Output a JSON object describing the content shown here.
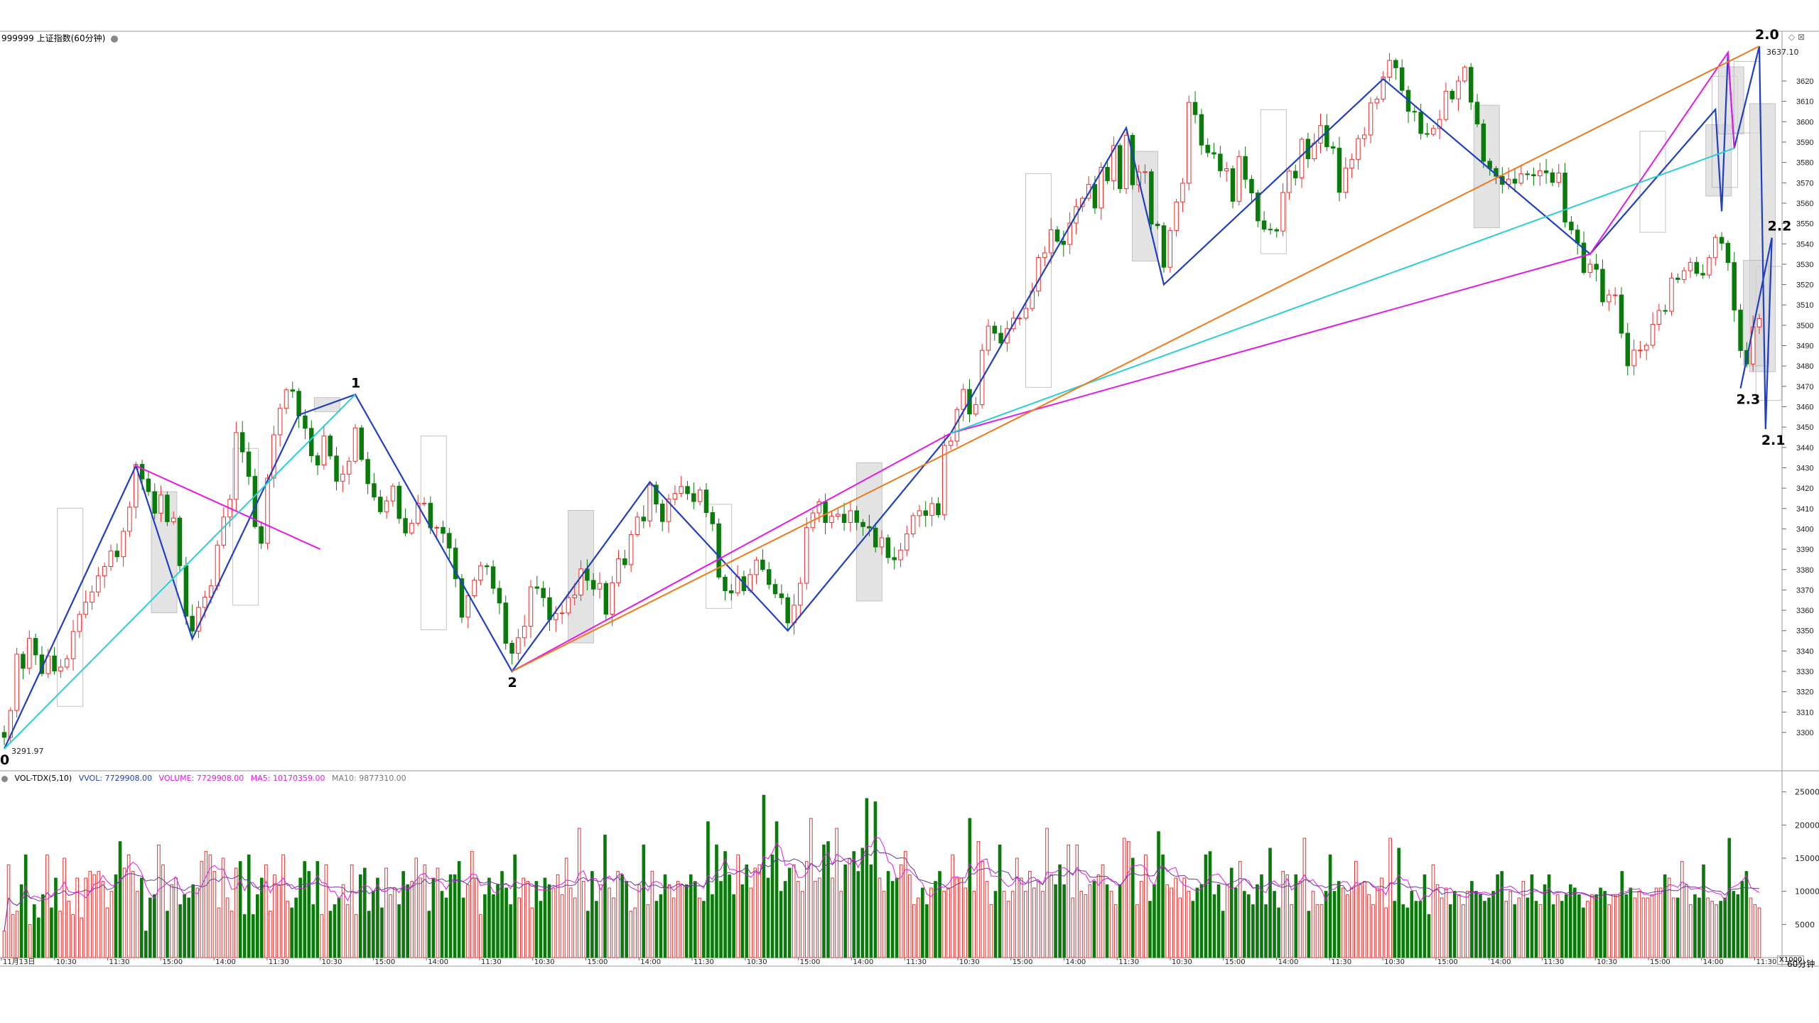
{
  "header": {
    "title": "999999 上证指数(60分钟)"
  },
  "volume_header": {
    "indicator": "VOL-TDX(5,10)",
    "vvol": "VVOL: 7729908.00",
    "volume": "VOLUME: 7729908.00",
    "ma5": "MA5: 10170359.00",
    "ma10": "MA10: 9877310.00"
  },
  "period_label": "60分钟",
  "scale_label": "X1000",
  "colors": {
    "up": "#e8302f",
    "down": "#0a7a0a",
    "zigzag": "#1f3fc4",
    "magenta": "#e21ae6",
    "cyan": "#2ad0d0",
    "orange": "#f07a1a",
    "ma5": "#e21ae6",
    "ma10": "#6a3a9a",
    "box_fill": "#d8d8d8"
  },
  "chart_data": [
    {
      "type": "candlestick",
      "title": "999999 上证指数(60分钟)",
      "ylim": [
        3285,
        3645
      ],
      "y_ticks": [
        3300,
        3310,
        3320,
        3330,
        3340,
        3350,
        3360,
        3370,
        3380,
        3390,
        3400,
        3410,
        3420,
        3430,
        3440,
        3450,
        3460,
        3470,
        3480,
        3490,
        3500,
        3510,
        3520,
        3530,
        3540,
        3550,
        3560,
        3570,
        3580,
        3590,
        3600,
        3610,
        3620
      ],
      "x_labels": [
        "11月13日",
        "10:30",
        "11:30",
        "15:00",
        "14:00",
        "11:30",
        "10:30",
        "15:00",
        "14:00",
        "11:30",
        "10:30",
        "15:00",
        "14:00",
        "11:30",
        "10:30",
        "15:00",
        "14:00",
        "11:30",
        "10:30",
        "15:00",
        "14:00",
        "11:30",
        "10:30",
        "15:00",
        "14:00",
        "11:30",
        "10:30",
        "15:00",
        "14:00",
        "11:30",
        "10:30",
        "15:00",
        "14:00",
        "11:30"
      ],
      "price_marks": [
        {
          "label": "3291.97",
          "value": 3291.97
        },
        {
          "label": "3637.10",
          "value": 3637.1
        }
      ],
      "wave_labels": [
        {
          "label": "0",
          "value": 3291.97
        },
        {
          "label": "1",
          "value": 3466
        },
        {
          "label": "2",
          "value": 3330
        },
        {
          "label": "2.0",
          "value": 3637.1
        },
        {
          "label": "2.1",
          "value": 3449
        },
        {
          "label": "2.2",
          "value": 3543
        },
        {
          "label": "2.3",
          "value": 3469
        }
      ],
      "zigzag": [
        3291.97,
        3431,
        3346,
        3456,
        3466,
        3330,
        3423,
        3350,
        3447,
        3597,
        3520,
        3621,
        3535,
        3606,
        3556,
        3634,
        3587,
        3637.1,
        3449,
        3543,
        3469
      ],
      "close": [
        3297.6,
        3310.8,
        3338.4,
        3331.5,
        3346.2,
        3338.1,
        3328.9,
        3337.6,
        3330.2,
        3332.1,
        3336.2,
        3349.6,
        3358.0,
        3364.0,
        3369.0,
        3376.9,
        3381.5,
        3389.1,
        3386.3,
        3398.8,
        3410.7,
        3431.7,
        3424.5,
        3418.3,
        3407.7,
        3416.6,
        3403.5,
        3405.3,
        3381.9,
        3357.1,
        3349.8,
        3361.4,
        3366.5,
        3372.0,
        3392.0,
        3405.8,
        3414.5,
        3447.3,
        3437.8,
        3425.8,
        3401.1,
        3392.9,
        3424.9,
        3446.2,
        3459.2,
        3468.3,
        3467.6,
        3455.5,
        3449.4,
        3435.9,
        3431.4,
        3445.6,
        3435.8,
        3423.4,
        3426.9,
        3433.2,
        3449.6,
        3434.1,
        3422.2,
        3415.6,
        3408.4,
        3413.7,
        3421.0,
        3405.1,
        3398.0,
        3402.8,
        3412.6,
        3412.6,
        3400.5,
        3400.7,
        3397.8,
        3390.6,
        3375.5,
        3356.6,
        3367.2,
        3374.8,
        3381.9,
        3381.4,
        3370.8,
        3363.6,
        3343.8,
        3338.9,
        3346.5,
        3352.2,
        3371.5,
        3370.8,
        3366.2,
        3355.4,
        3358.4,
        3358.7,
        3366.2,
        3367.5,
        3380.3,
        3374.7,
        3370.4,
        3373.2,
        3358.1,
        3373.5,
        3385.3,
        3382.4,
        3397.2,
        3405.8,
        3403.9,
        3421.5,
        3412.2,
        3403.6,
        3414.6,
        3417.4,
        3420.8,
        3417.3,
        3413.4,
        3419.1,
        3408.0,
        3402.5,
        3376.3,
        3369.6,
        3368.5,
        3376.5,
        3369.6,
        3377.5,
        3384.7,
        3380.0,
        3372.7,
        3368.1,
        3366.2,
        3353.8,
        3362.5,
        3373.3,
        3400.6,
        3407.8,
        3413.3,
        3403.1,
        3406.2,
        3407.2,
        3403.1,
        3408.9,
        3403.2,
        3401.1,
        3400.4,
        3391.1,
        3395.6,
        3385.9,
        3384.8,
        3389.6,
        3397.5,
        3406.5,
        3408.9,
        3406.6,
        3412.4,
        3406.9,
        3441.0,
        3443.1,
        3458.7,
        3468.5,
        3456.4,
        3461.0,
        3487.7,
        3499.6,
        3496.1,
        3491.3,
        3498.3,
        3503.5,
        3503.5,
        3508.3,
        3516.8,
        3533.3,
        3535.6,
        3546.9,
        3541.3,
        3539.7,
        3550.2,
        3558.3,
        3562.4,
        3569.2,
        3557.6,
        3577.6,
        3571.0,
        3588.3,
        3567.1,
        3593.3,
        3569.0,
        3575.3,
        3575.4,
        3549.7,
        3548.9,
        3528.5,
        3546.6,
        3560.6,
        3569.8,
        3609.5,
        3603.5,
        3588.5,
        3584.8,
        3584.1,
        3575.9,
        3576.9,
        3560.9,
        3582.9,
        3571.7,
        3565.0,
        3551.3,
        3547.2,
        3547.0,
        3546.3,
        3565.2,
        3575.7,
        3572.4,
        3591.4,
        3581.8,
        3589.5,
        3598.1,
        3587.7,
        3587.0,
        3565.3,
        3577.2,
        3581.5,
        3591.7,
        3593.5,
        3609.2,
        3611.1,
        3621.9,
        3630.1,
        3626.5,
        3615.4,
        3605.1,
        3604.7,
        3594.2,
        3593.8,
        3596.7,
        3601.1,
        3615.0,
        3611.2,
        3620.0,
        3626.7,
        3609.6,
        3598.9,
        3580.6,
        3577.0,
        3573.2,
        3569.2,
        3571.8,
        3569.8,
        3574.4,
        3574.0,
        3573.4,
        3575.9,
        3574.9,
        3570.2,
        3574.8,
        3550.7,
        3546.8,
        3540.4,
        3525.9,
        3530.0,
        3527.5,
        3511.5,
        3514.9,
        3514.9,
        3496.1,
        3480.1,
        3487.8,
        3487.8,
        3490.2,
        3500.5,
        3507.3,
        3506.9,
        3523.2,
        3522.5,
        3526.8,
        3530.9,
        3525.5,
        3524.7,
        3533.2,
        3543.2,
        3540.3,
        3530.8,
        3507.5,
        3487.6,
        3481.0,
        3499.2,
        3503.3
      ]
    },
    {
      "type": "bar",
      "title": "VOL-TDX(5,10)",
      "ylim": [
        0,
        27000
      ],
      "y_ticks": [
        5000,
        10000,
        15000,
        20000,
        25000
      ],
      "series": [
        {
          "name": "VOLUME",
          "values": [
            4000,
            14000,
            6500,
            7000,
            11000,
            15500,
            5000,
            8000,
            6000,
            9500,
            15500,
            7500,
            12000,
            7000,
            15000,
            8500,
            6500,
            12000,
            6000,
            12000,
            13000,
            12500,
            13000,
            11500,
            7500,
            10000,
            12500,
            17500,
            13500,
            15500,
            13000,
            10000,
            12000,
            4000,
            9000,
            9500,
            17000,
            14000,
            7000,
            11000,
            12000,
            8000,
            9500,
            9000,
            11000,
            10500,
            14500,
            16000,
            15500,
            13000,
            7500,
            15000,
            9000,
            7000,
            13500,
            14500,
            6500,
            15500,
            6500,
            9500,
            12000,
            14000,
            7000,
            12500,
            11000,
            15500,
            8500,
            7500,
            9000,
            12000,
            14500,
            13000,
            8000,
            14500,
            6500,
            14000,
            7000,
            8000,
            9000,
            11000,
            8000,
            14000,
            6500,
            12500,
            13500,
            7000,
            10000,
            12000,
            7500,
            13500,
            9500,
            10500,
            8000,
            13000,
            11000,
            11500,
            15000,
            12000,
            14000,
            7000,
            12000,
            13500,
            10000,
            9000,
            12500,
            12500,
            14500,
            9000,
            11000,
            16000,
            12000,
            6500,
            9500,
            12000,
            9500,
            11000,
            13000,
            10500,
            8000,
            15500,
            9000,
            12000,
            11500,
            7500,
            11500,
            8500,
            12000,
            11000,
            10500,
            12500,
            9500,
            15000,
            10500,
            9000,
            19500,
            11500,
            7000,
            13000,
            8500,
            11000,
            18500,
            10500,
            9000,
            13000,
            12500,
            11500,
            7000,
            7500,
            11000,
            17000,
            8000,
            13000,
            8500,
            9500,
            12500,
            11000,
            9000,
            11500,
            11000,
            11000,
            12500,
            11500,
            9000,
            8500,
            20500,
            9500,
            17000,
            11500,
            16000,
            12500,
            9500,
            15500,
            11000,
            14000,
            10500,
            13500,
            14000,
            24500,
            12000,
            15500,
            20500,
            10000,
            11500,
            13500,
            14000,
            11500,
            10000,
            14500,
            21000,
            11500,
            12000,
            17000,
            17500,
            12000,
            19500,
            10000,
            14000,
            15000,
            16000,
            13000,
            16500,
            24000,
            14000,
            23500,
            12000,
            10000,
            13000,
            11500,
            12000,
            14000,
            16000,
            12500,
            8000,
            9000,
            10500,
            8000,
            10500,
            11500,
            13000,
            10000,
            10500,
            15500,
            12000,
            12000,
            10500,
            21000,
            10000,
            17500,
            14500,
            11500,
            8000,
            10000,
            17000,
            10000,
            8500,
            10000,
            15000,
            12000,
            10000,
            13000,
            10500,
            11500,
            10000,
            19500,
            12500,
            11000,
            14000,
            11000,
            17000,
            9000,
            17000,
            10000,
            9500,
            11000,
            11500,
            12500,
            14000,
            11000,
            10000,
            8000,
            11000,
            18000,
            17500,
            15000,
            8000,
            11500,
            15500,
            8500,
            11000,
            19000,
            15500,
            11000,
            10500,
            12000,
            9000,
            12000,
            10000,
            8500,
            10500,
            11000,
            15500,
            16000,
            9500,
            11000,
            7000,
            11000,
            13500,
            10500,
            14500,
            10000,
            9500,
            8000,
            11000,
            12500,
            8000,
            16500,
            10000,
            7500,
            13000,
            12500,
            8000,
            12500,
            11500,
            18000,
            7000,
            10000,
            8000,
            8000,
            10000,
            15500,
            10000,
            11500,
            10500,
            9500,
            10500,
            14500,
            11000,
            11500,
            9500,
            8000,
            10500,
            12000,
            7500,
            18000,
            8500,
            16500,
            8000,
            7500,
            10000,
            8500,
            8500,
            12500,
            6500,
            14000,
            11000,
            9000,
            10500,
            8000,
            10000,
            9500,
            8000,
            10000,
            11500,
            10000,
            9500,
            8500,
            9000,
            10000,
            12500,
            13000,
            8500,
            10000,
            8000,
            9000,
            11500,
            9000,
            12500,
            8500,
            8000,
            11000,
            12500,
            8000,
            9500,
            8500,
            9500,
            11000,
            10500,
            9500,
            7500,
            8500,
            9500,
            9500,
            10500,
            10000,
            8000,
            9500,
            9500,
            13000,
            9500,
            10500,
            9000,
            10000,
            9000,
            9000,
            9500,
            10500,
            10500,
            12500,
            12000,
            9000,
            9000,
            14500,
            11000,
            8000,
            9500,
            9000,
            14000,
            9000,
            8500,
            8000,
            8500,
            9000,
            18000,
            10000,
            9500,
            11500,
            13000,
            9000,
            8000,
            7500
          ]
        },
        {
          "name": "MA5",
          "values": []
        },
        {
          "name": "MA10",
          "values": []
        }
      ]
    }
  ]
}
